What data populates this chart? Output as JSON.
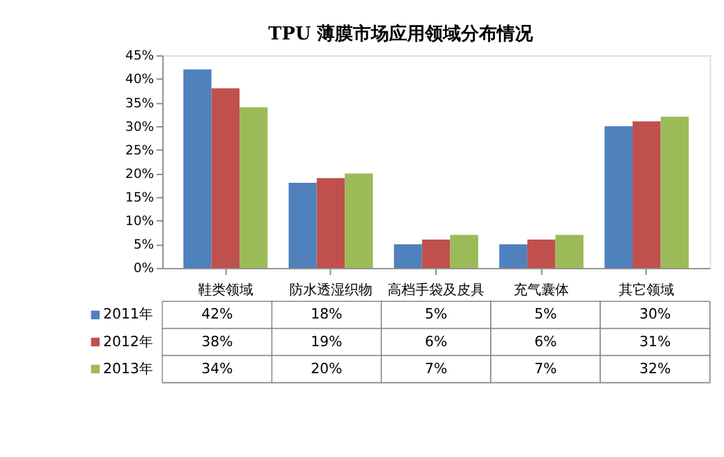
{
  "chart_data": {
    "type": "bar",
    "title": "TPU 薄膜市场应用领域分布情况",
    "categories": [
      "鞋类领域",
      "防水透湿织物",
      "高档手袋及皮具",
      "充气囊体",
      "其它领域"
    ],
    "series": [
      {
        "name": "2011年",
        "color": "#4f81bd",
        "values": [
          42,
          18,
          5,
          5,
          30
        ],
        "value_labels": [
          "42%",
          "18%",
          "5%",
          "5%",
          "30%"
        ]
      },
      {
        "name": "2012年",
        "color": "#c0504d",
        "values": [
          38,
          19,
          6,
          6,
          31
        ],
        "value_labels": [
          "38%",
          "19%",
          "6%",
          "6%",
          "31%"
        ]
      },
      {
        "name": "2013年",
        "color": "#9bbb59",
        "values": [
          34,
          20,
          7,
          7,
          32
        ],
        "value_labels": [
          "34%",
          "20%",
          "7%",
          "7%",
          "32%"
        ]
      }
    ],
    "ylim": [
      0,
      45
    ],
    "yticks": [
      {
        "value": 0,
        "label": "0%"
      },
      {
        "value": 5,
        "label": "5%"
      },
      {
        "value": 10,
        "label": "10%"
      },
      {
        "value": 15,
        "label": "15%"
      },
      {
        "value": 20,
        "label": "20%"
      },
      {
        "value": 25,
        "label": "25%"
      },
      {
        "value": 30,
        "label": "30%"
      },
      {
        "value": 35,
        "label": "35%"
      },
      {
        "value": 40,
        "label": "40%"
      },
      {
        "value": 45,
        "label": "45%"
      }
    ],
    "grid": false,
    "legend": "bottom"
  }
}
